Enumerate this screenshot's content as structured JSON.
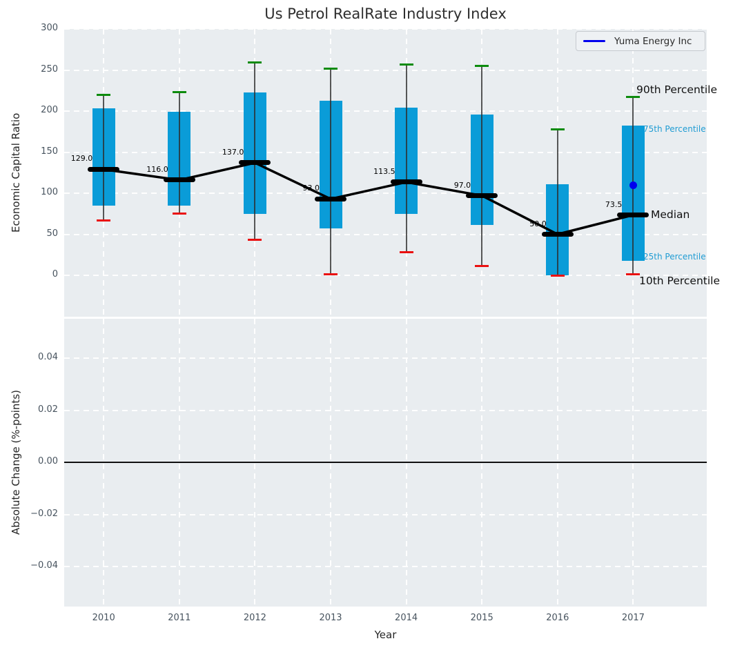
{
  "figure_title": "Us Petrol RealRate Industry Index",
  "legend": {
    "label": "Yuma Energy Inc"
  },
  "annotations": {
    "p90": "90th Percentile",
    "p75": "75th Percentile",
    "median": "Median",
    "p25": "25th Percentile",
    "p10": "10th Percentile"
  },
  "colors": {
    "box_fill": "#0a9cd8",
    "p90_cap": "#0c8b0c",
    "p10_cap": "#ea1010",
    "median": "#000000",
    "company_line": "#0000ee",
    "plot_bg": "#e9edf0",
    "grid": "#ffffff",
    "tick_label": "#47535e"
  },
  "chart_data": [
    {
      "type": "box",
      "title": "Us Petrol RealRate Industry Index",
      "xlabel": "Year",
      "ylabel": "Economic Capital Ratio",
      "ylim": [
        -50,
        300
      ],
      "yticks": [
        0,
        50,
        100,
        150,
        200,
        250,
        300
      ],
      "categories": [
        "2010",
        "2011",
        "2012",
        "2013",
        "2014",
        "2015",
        "2016",
        "2017"
      ],
      "series": [
        {
          "name": "90th Percentile",
          "values": [
            220,
            223,
            259,
            252,
            257,
            255,
            178,
            217
          ]
        },
        {
          "name": "75th Percentile",
          "values": [
            203,
            199,
            223,
            213,
            204,
            196,
            111,
            182
          ]
        },
        {
          "name": "Median",
          "values": [
            129.0,
            116.0,
            137.0,
            93.0,
            113.5,
            97.0,
            50.0,
            73.5
          ]
        },
        {
          "name": "25th Percentile",
          "values": [
            85,
            85,
            75,
            57,
            75,
            61,
            0,
            18
          ]
        },
        {
          "name": "10th Percentile",
          "values": [
            67,
            75,
            43,
            1,
            28,
            11,
            0,
            1
          ]
        }
      ],
      "median_labels": [
        "129.0",
        "116.0",
        "137.0",
        "93.0",
        "113.5",
        "97.0",
        "50.0",
        "73.5"
      ],
      "company_point": {
        "name": "Yuma Energy Inc",
        "category": "2017",
        "value": 110
      },
      "legend": [
        "Yuma Energy Inc"
      ],
      "legend_position": "upper right",
      "grid": true
    },
    {
      "type": "line",
      "ylabel": "Absolute Change (%-points)",
      "ylim": [
        -0.055,
        0.055
      ],
      "yticks": [
        0.04,
        0.02,
        0.0,
        -0.02,
        -0.04
      ],
      "ytick_labels": [
        "0.04",
        "0.02",
        "0.00",
        "−0.02",
        "−0.04"
      ],
      "series": [],
      "zero_line": 0.0,
      "grid": true
    }
  ]
}
